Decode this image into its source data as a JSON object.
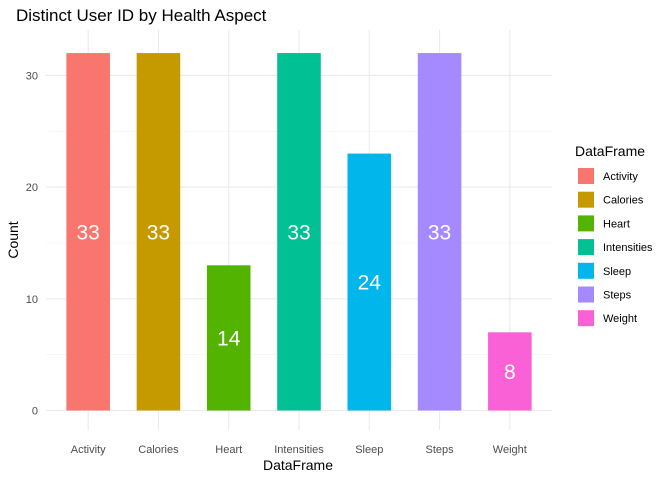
{
  "chart_data": {
    "type": "bar",
    "title": "Distinct User ID by Health Aspect",
    "xlabel": "DataFrame",
    "ylabel": "Count",
    "categories": [
      "Activity",
      "Calories",
      "Heart",
      "Intensities",
      "Sleep",
      "Steps",
      "Weight"
    ],
    "values": [
      33,
      33,
      14,
      33,
      24,
      33,
      8
    ],
    "data_labels": [
      "33",
      "33",
      "14",
      "33",
      "24",
      "33",
      "8"
    ],
    "colors": [
      "#F8766D",
      "#C49A00",
      "#53B400",
      "#00C094",
      "#00B6EB",
      "#A58AFF",
      "#FB61D7"
    ],
    "ylim": [
      0,
      33
    ],
    "yticks": [
      0,
      10,
      20,
      30
    ],
    "grid": true,
    "legend": {
      "title": "DataFrame",
      "position": "right",
      "entries": [
        "Activity",
        "Calories",
        "Heart",
        "Intensities",
        "Sleep",
        "Steps",
        "Weight"
      ]
    }
  }
}
